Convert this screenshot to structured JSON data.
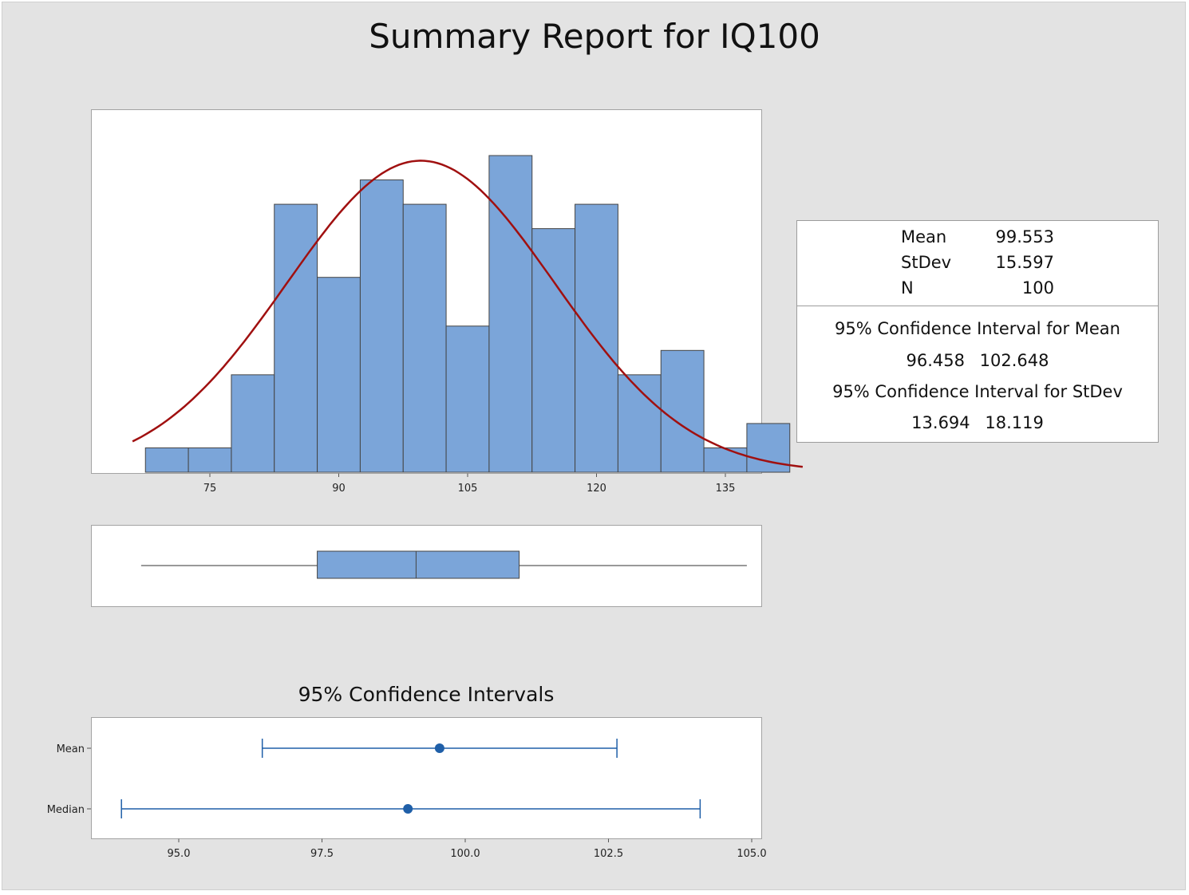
{
  "title": "Summary Report for IQ100",
  "colors": {
    "bar_fill": "#7ba5d9",
    "bar_stroke": "#444444",
    "curve": "#a01010",
    "ci": "#1f5fa8",
    "background": "#e3e3e3"
  },
  "chart_data": [
    {
      "type": "bar",
      "name": "histogram",
      "bin_edges": [
        67.5,
        72.5,
        77.5,
        82.5,
        87.5,
        92.5,
        97.5,
        102.5,
        107.5,
        112.5,
        117.5,
        122.5,
        127.5,
        132.5,
        137.5,
        142.5
      ],
      "values": [
        1,
        1,
        4,
        11,
        8,
        12,
        11,
        6,
        13,
        10,
        11,
        4,
        5,
        1,
        2
      ],
      "x_ticks": [
        "75",
        "90",
        "105",
        "120",
        "135"
      ],
      "x_tick_values": [
        75,
        90,
        105,
        120,
        135
      ],
      "fitted_normal": {
        "mean": 99.553,
        "stdev": 15.597,
        "n": 100
      },
      "grid": false
    },
    {
      "type": "boxplot",
      "name": "boxplot",
      "whisker_low": 67,
      "q1": 87.5,
      "median": 99,
      "q3": 111,
      "whisker_high": 137.5
    },
    {
      "type": "interval",
      "name": "confidence-intervals",
      "title": "95% Confidence Intervals",
      "xlim": [
        93.7,
        105.3
      ],
      "x_ticks": [
        "95.0",
        "97.5",
        "100.0",
        "102.5",
        "105.0"
      ],
      "x_tick_values": [
        95.0,
        97.5,
        100.0,
        102.5,
        105.0
      ],
      "series": [
        {
          "name": "Mean",
          "estimate": 99.553,
          "lower": 96.458,
          "upper": 102.648
        },
        {
          "name": "Median",
          "estimate": 99.0,
          "lower": 94.0,
          "upper": 104.1
        }
      ]
    }
  ],
  "stats": {
    "rows": [
      {
        "label": "Mean",
        "value": "99.553"
      },
      {
        "label": "StDev",
        "value": "15.597"
      },
      {
        "label": "N",
        "value": "100"
      }
    ],
    "ci_mean_title": "95% Confidence Interval for Mean",
    "ci_mean_lower": "96.458",
    "ci_mean_upper": "102.648",
    "ci_stdev_title": "95% Confidence Interval for StDev",
    "ci_stdev_lower": "13.694",
    "ci_stdev_upper": "18.119"
  }
}
